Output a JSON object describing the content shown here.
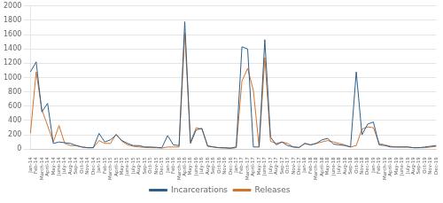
{
  "chart_data": {
    "type": "line",
    "categories": [
      "Jan-14",
      "Feb-14",
      "March-14",
      "April-14",
      "May-14",
      "June-14",
      "July-14",
      "Aug-14",
      "Sep-14",
      "Oct-14",
      "Nov-14",
      "Dec-14",
      "Jan-15",
      "Feb-15",
      "March-15",
      "April-15",
      "May-15",
      "June-15",
      "July-15",
      "Aug-15",
      "Sep-15",
      "Oct-15",
      "Nov-15",
      "Dec-15",
      "Jan-16",
      "Feb-16",
      "March-16",
      "April-16",
      "May-16",
      "June-16",
      "July-16",
      "Aug-16",
      "Sep-16",
      "Oct-16",
      "Nov-16",
      "Dec-16",
      "Jan-17",
      "Feb-17",
      "March-17",
      "April-17",
      "May-17",
      "June-17",
      "July-17",
      "Aug-17",
      "Sep-17",
      "Oct-17",
      "Nov-17",
      "Dec-17",
      "Jan-18",
      "Feb-18",
      "March-18",
      "April-18",
      "May-18",
      "June-18",
      "July-18",
      "Aug-18",
      "Sep-18",
      "Oct-18",
      "Nov-18",
      "Dec-18",
      "Jan-19",
      "Feb-19",
      "March-19",
      "April-19",
      "May-19",
      "June-19",
      "July-19",
      "Aug-19",
      "Sep-19",
      "Oct-19",
      "Nov-19",
      "Dec-19"
    ],
    "series": [
      {
        "name": "Incarcerations",
        "color": "#2e5f8a",
        "values": [
          1080,
          1220,
          520,
          640,
          80,
          100,
          90,
          80,
          50,
          30,
          20,
          20,
          220,
          100,
          130,
          200,
          120,
          80,
          50,
          50,
          30,
          30,
          25,
          20,
          190,
          60,
          50,
          1780,
          80,
          270,
          290,
          40,
          30,
          20,
          20,
          15,
          30,
          1430,
          1400,
          30,
          30,
          1530,
          170,
          60,
          100,
          50,
          30,
          25,
          80,
          60,
          80,
          130,
          150,
          70,
          60,
          50,
          30,
          1080,
          200,
          350,
          380,
          60,
          50,
          30,
          30,
          30,
          30,
          20,
          20,
          30,
          40,
          50
        ]
      },
      {
        "name": "Releases",
        "color": "#d4732a",
        "values": [
          220,
          1080,
          550,
          330,
          100,
          330,
          80,
          50,
          50,
          30,
          20,
          20,
          120,
          80,
          80,
          210,
          110,
          60,
          40,
          30,
          25,
          20,
          20,
          15,
          30,
          30,
          30,
          1620,
          100,
          300,
          280,
          50,
          30,
          20,
          15,
          10,
          20,
          950,
          1130,
          820,
          30,
          1280,
          110,
          80,
          100,
          80,
          30,
          20,
          80,
          60,
          80,
          100,
          120,
          100,
          80,
          60,
          30,
          50,
          280,
          310,
          300,
          80,
          60,
          40,
          30,
          30,
          30,
          20,
          20,
          20,
          30,
          40
        ]
      }
    ],
    "ylim": [
      0,
      2000
    ],
    "yticks": [
      0,
      200,
      400,
      600,
      800,
      1000,
      1200,
      1400,
      1600,
      1800,
      2000
    ],
    "grid": true,
    "legend": "bottom"
  }
}
